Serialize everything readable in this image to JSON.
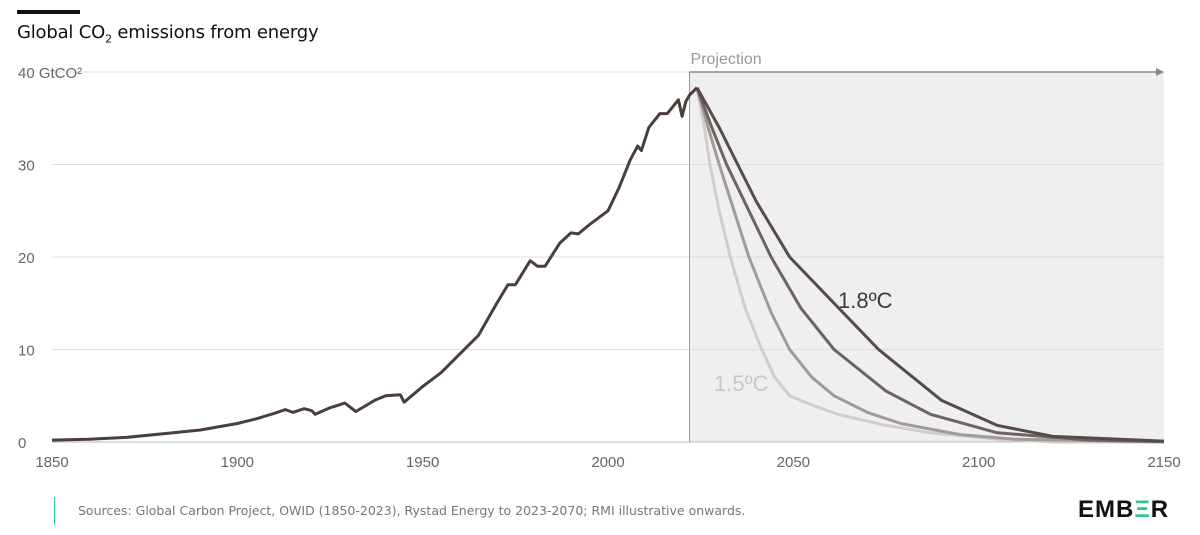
{
  "header": {
    "title_prefix": "Global CO",
    "title_sub": "2",
    "title_suffix": " emissions from energy"
  },
  "footer": {
    "sources": "Sources: Global Carbon Project, OWID (1850-2023), Rystad Energy to 2023-2070; RMI illustrative onwards.",
    "logo": "EMBER",
    "logo_accent_color": "#2fc585"
  },
  "chart_data": {
    "type": "line",
    "title": "Global CO2 emissions from energy",
    "ylabel": "GtCO2",
    "y_unit_label": "GtCO²",
    "xlim": [
      1850,
      2150
    ],
    "ylim": [
      0,
      40
    ],
    "x_ticks": [
      1850,
      1900,
      1950,
      2000,
      2050,
      2100,
      2150
    ],
    "y_ticks": [
      0,
      10,
      20,
      30,
      40
    ],
    "grid": true,
    "projection": {
      "label": "Projection",
      "start": 2022,
      "shade_color": "#efefef"
    },
    "annotations": [
      {
        "text": "1.8ºC",
        "color": "#3d3a39"
      },
      {
        "text": "1.5ºC",
        "color": "#c9c6c5"
      }
    ],
    "series": [
      {
        "role": "historical",
        "color": "#4a3f3d",
        "x": [
          1850,
          1860,
          1870,
          1880,
          1890,
          1900,
          1905,
          1910,
          1913,
          1915,
          1918,
          1920,
          1921,
          1925,
          1929,
          1932,
          1937,
          1940,
          1944,
          1945,
          1950,
          1955,
          1960,
          1965,
          1970,
          1973,
          1975,
          1979,
          1981,
          1983,
          1987,
          1990,
          1992,
          1995,
          2000,
          2003,
          2006,
          2008,
          2009,
          2011,
          2014,
          2016,
          2019,
          2020,
          2021,
          2022,
          2024
        ],
        "y": [
          0.2,
          0.3,
          0.5,
          0.9,
          1.3,
          2.0,
          2.5,
          3.1,
          3.5,
          3.2,
          3.6,
          3.4,
          3.0,
          3.7,
          4.2,
          3.3,
          4.5,
          5.0,
          5.1,
          4.3,
          6.0,
          7.5,
          9.5,
          11.5,
          15.0,
          17.0,
          17.0,
          19.6,
          19.0,
          19.0,
          21.5,
          22.6,
          22.5,
          23.5,
          25.0,
          27.5,
          30.5,
          32.0,
          31.5,
          34.0,
          35.5,
          35.5,
          37.0,
          35.2,
          36.8,
          37.5,
          38.3
        ]
      },
      {
        "role": "scenario",
        "color": "#564b48",
        "x": [
          2024,
          2030,
          2035,
          2040,
          2049,
          2061,
          2073,
          2090,
          2105,
          2120,
          2150
        ],
        "y": [
          38.3,
          34.0,
          30.0,
          26.0,
          20.0,
          15.0,
          10.0,
          4.5,
          1.8,
          0.6,
          0.1
        ]
      },
      {
        "role": "scenario",
        "color": "#6e6360",
        "x": [
          2024,
          2028,
          2032,
          2038,
          2044,
          2052,
          2061,
          2075,
          2087,
          2105,
          2130,
          2150
        ],
        "y": [
          38.3,
          34.0,
          30.0,
          25.0,
          20.0,
          14.5,
          10.0,
          5.5,
          3.0,
          1.0,
          0.2,
          0.05
        ]
      },
      {
        "role": "scenario",
        "color": "#a29a98",
        "x": [
          2024,
          2027,
          2030,
          2034,
          2038,
          2044,
          2049,
          2055,
          2061,
          2070,
          2079,
          2095,
          2110,
          2150
        ],
        "y": [
          38.3,
          34.0,
          30.0,
          25.0,
          20.0,
          14.0,
          10.0,
          7.0,
          5.0,
          3.2,
          2.0,
          0.8,
          0.3,
          0.0
        ]
      },
      {
        "role": "scenario",
        "color": "#d2cdcb",
        "x": [
          2024,
          2026,
          2027.5,
          2030,
          2033,
          2037,
          2041.5,
          2045,
          2049,
          2055,
          2062,
          2075,
          2087,
          2105,
          2120,
          2150
        ],
        "y": [
          38.3,
          34.0,
          30.0,
          25.0,
          20.0,
          14.5,
          10.0,
          7.0,
          5.0,
          4.0,
          3.0,
          1.8,
          1.0,
          0.3,
          0.0,
          0.0
        ]
      }
    ]
  }
}
